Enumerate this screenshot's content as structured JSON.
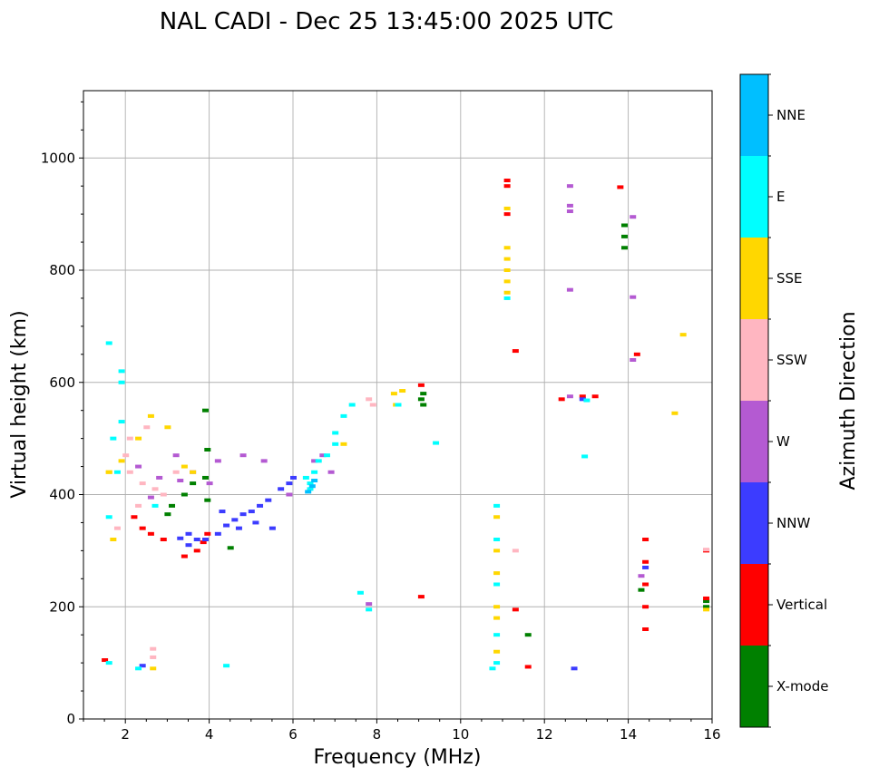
{
  "chart_data": {
    "type": "scatter",
    "title": "NAL CADI - Dec 25 13:45:00 2025 UTC",
    "xlabel": "Frequency (MHz)",
    "ylabel": "Virtual height (km)",
    "xlim": [
      1,
      16
    ],
    "ylim": [
      0,
      1120
    ],
    "xticks": [
      2,
      4,
      6,
      8,
      10,
      12,
      14,
      16
    ],
    "yticks": [
      0,
      200,
      400,
      600,
      800,
      1000
    ],
    "grid": true,
    "colorbar": {
      "label": "Azimuth Direction",
      "categories": [
        {
          "name": "X-mode",
          "color": "#008000"
        },
        {
          "name": "Vertical",
          "color": "#ff0000"
        },
        {
          "name": "NNW",
          "color": "#3c3cff"
        },
        {
          "name": "W",
          "color": "#b45ad2"
        },
        {
          "name": "SSW",
          "color": "#ffb6c1"
        },
        {
          "name": "SSE",
          "color": "#ffd700"
        },
        {
          "name": "E",
          "color": "#00ffff"
        },
        {
          "name": "NNE",
          "color": "#00bfff"
        }
      ]
    },
    "series": [
      {
        "name": "X-mode",
        "points": [
          [
            3.9,
            550
          ],
          [
            3.95,
            480
          ],
          [
            3.9,
            430
          ],
          [
            3.95,
            390
          ],
          [
            3.6,
            420
          ],
          [
            3.4,
            400
          ],
          [
            3.1,
            380
          ],
          [
            3.0,
            365
          ],
          [
            4.5,
            305
          ],
          [
            9.1,
            560
          ],
          [
            9.1,
            580
          ],
          [
            9.05,
            570
          ],
          [
            11.6,
            150
          ],
          [
            13.9,
            840
          ],
          [
            13.9,
            860
          ],
          [
            13.9,
            880
          ],
          [
            14.3,
            230
          ],
          [
            15.85,
            200
          ],
          [
            15.85,
            210
          ]
        ]
      },
      {
        "name": "Vertical",
        "points": [
          [
            2.2,
            360
          ],
          [
            2.4,
            340
          ],
          [
            2.6,
            330
          ],
          [
            2.9,
            320
          ],
          [
            3.4,
            290
          ],
          [
            3.7,
            300
          ],
          [
            3.85,
            315
          ],
          [
            3.95,
            330
          ],
          [
            11.1,
            950
          ],
          [
            11.1,
            960
          ],
          [
            11.1,
            900
          ],
          [
            11.3,
            656
          ],
          [
            11.3,
            195
          ],
          [
            11.6,
            93
          ],
          [
            12.4,
            570
          ],
          [
            12.9,
            575
          ],
          [
            13.2,
            575
          ],
          [
            13.8,
            948
          ],
          [
            14.4,
            320
          ],
          [
            14.4,
            280
          ],
          [
            14.4,
            240
          ],
          [
            14.4,
            200
          ],
          [
            14.4,
            160
          ],
          [
            14.2,
            650
          ],
          [
            15.85,
            300
          ],
          [
            15.85,
            215
          ],
          [
            9.05,
            595
          ],
          [
            9.05,
            218
          ],
          [
            1.5,
            105
          ]
        ]
      },
      {
        "name": "NNW",
        "points": [
          [
            3.5,
            310
          ],
          [
            3.7,
            320
          ],
          [
            3.9,
            320
          ],
          [
            4.2,
            330
          ],
          [
            4.4,
            345
          ],
          [
            4.6,
            355
          ],
          [
            4.8,
            365
          ],
          [
            5.0,
            370
          ],
          [
            5.2,
            380
          ],
          [
            5.4,
            390
          ],
          [
            5.5,
            340
          ],
          [
            5.7,
            410
          ],
          [
            5.9,
            420
          ],
          [
            6.0,
            430
          ],
          [
            4.3,
            370
          ],
          [
            4.7,
            340
          ],
          [
            5.1,
            350
          ],
          [
            3.5,
            330
          ],
          [
            3.3,
            322
          ],
          [
            12.7,
            90
          ],
          [
            14.4,
            270
          ],
          [
            12.9,
            570
          ],
          [
            2.4,
            95
          ]
        ]
      },
      {
        "name": "W",
        "points": [
          [
            2.3,
            450
          ],
          [
            2.8,
            430
          ],
          [
            3.2,
            470
          ],
          [
            3.6,
            440
          ],
          [
            4.2,
            460
          ],
          [
            4.8,
            470
          ],
          [
            5.3,
            460
          ],
          [
            5.9,
            400
          ],
          [
            6.7,
            470
          ],
          [
            6.9,
            440
          ],
          [
            6.5,
            460
          ],
          [
            12.6,
            950
          ],
          [
            12.6,
            905
          ],
          [
            12.6,
            915
          ],
          [
            12.6,
            765
          ],
          [
            12.6,
            575
          ],
          [
            14.1,
            895
          ],
          [
            14.1,
            752
          ],
          [
            14.1,
            640
          ],
          [
            7.8,
            205
          ],
          [
            14.3,
            255
          ],
          [
            3.3,
            425
          ],
          [
            4.0,
            420
          ],
          [
            2.6,
            395
          ]
        ]
      },
      {
        "name": "SSW",
        "points": [
          [
            2.0,
            470
          ],
          [
            2.1,
            440
          ],
          [
            2.4,
            420
          ],
          [
            2.3,
            380
          ],
          [
            2.7,
            410
          ],
          [
            2.9,
            400
          ],
          [
            3.2,
            440
          ],
          [
            1.8,
            340
          ],
          [
            2.1,
            500
          ],
          [
            2.5,
            520
          ],
          [
            7.8,
            570
          ],
          [
            7.9,
            560
          ],
          [
            2.65,
            125
          ],
          [
            2.65,
            110
          ],
          [
            11.3,
            300
          ],
          [
            15.85,
            302
          ]
        ]
      },
      {
        "name": "SSE",
        "points": [
          [
            1.6,
            440
          ],
          [
            1.9,
            460
          ],
          [
            2.3,
            500
          ],
          [
            2.6,
            540
          ],
          [
            3.0,
            520
          ],
          [
            3.4,
            450
          ],
          [
            3.6,
            440
          ],
          [
            1.7,
            320
          ],
          [
            1.6,
            440
          ],
          [
            7.2,
            490
          ],
          [
            8.4,
            580
          ],
          [
            8.6,
            585
          ],
          [
            8.45,
            560
          ],
          [
            11.1,
            760
          ],
          [
            11.1,
            780
          ],
          [
            11.1,
            800
          ],
          [
            11.1,
            820
          ],
          [
            11.1,
            840
          ],
          [
            10.85,
            360
          ],
          [
            10.85,
            300
          ],
          [
            10.85,
            260
          ],
          [
            10.85,
            200
          ],
          [
            10.85,
            180
          ],
          [
            10.85,
            120
          ],
          [
            11.1,
            910
          ],
          [
            15.3,
            685
          ],
          [
            15.1,
            545
          ],
          [
            15.85,
            195
          ],
          [
            2.65,
            90
          ]
        ]
      },
      {
        "name": "E",
        "points": [
          [
            6.4,
            420
          ],
          [
            6.5,
            440
          ],
          [
            6.6,
            460
          ],
          [
            6.8,
            470
          ],
          [
            7.0,
            490
          ],
          [
            7.2,
            540
          ],
          [
            7.4,
            560
          ],
          [
            7.0,
            510
          ],
          [
            6.4,
            410
          ],
          [
            6.3,
            430
          ],
          [
            1.6,
            670
          ],
          [
            1.9,
            620
          ],
          [
            1.9,
            600
          ],
          [
            1.9,
            530
          ],
          [
            1.6,
            360
          ],
          [
            1.7,
            500
          ],
          [
            2.7,
            380
          ],
          [
            10.85,
            380
          ],
          [
            10.85,
            320
          ],
          [
            10.85,
            240
          ],
          [
            10.85,
            150
          ],
          [
            10.85,
            100
          ],
          [
            10.75,
            90
          ],
          [
            12.95,
            468
          ],
          [
            11.1,
            750
          ],
          [
            9.4,
            492
          ],
          [
            7.6,
            225
          ],
          [
            7.8,
            195
          ],
          [
            2.3,
            90
          ],
          [
            1.6,
            100
          ],
          [
            4.4,
            95
          ],
          [
            8.5,
            560
          ],
          [
            13.0,
            568
          ],
          [
            1.8,
            440
          ]
        ]
      },
      {
        "name": "NNE",
        "points": [
          [
            6.35,
            405
          ],
          [
            6.45,
            415
          ],
          [
            6.5,
            425
          ]
        ]
      }
    ]
  }
}
